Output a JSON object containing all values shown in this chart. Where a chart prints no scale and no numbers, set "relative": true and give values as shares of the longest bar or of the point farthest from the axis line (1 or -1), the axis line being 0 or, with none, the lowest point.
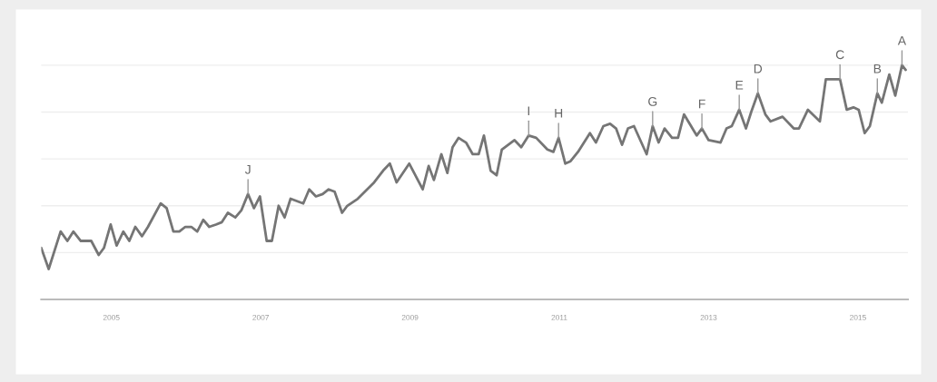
{
  "chart_data": {
    "type": "line",
    "relative": true,
    "grid": "y",
    "marker": "none",
    "line_style": "solid",
    "x": [
      2004.06,
      2004.16,
      2004.32,
      2004.41,
      2004.49,
      2004.59,
      2004.65,
      2004.73,
      2004.83,
      2004.9,
      2004.99,
      2005.07,
      2005.16,
      2005.24,
      2005.32,
      2005.41,
      2005.49,
      2005.66,
      2005.74,
      2005.83,
      2005.91,
      2005.99,
      2006.07,
      2006.15,
      2006.23,
      2006.31,
      2006.4,
      2006.48,
      2006.56,
      2006.66,
      2006.74,
      2006.83,
      2006.91,
      2006.99,
      2007.08,
      2007.15,
      2007.24,
      2007.32,
      2007.4,
      2007.57,
      2007.65,
      2007.74,
      2007.83,
      2007.91,
      2007.99,
      2008.09,
      2008.16,
      2008.3,
      2008.52,
      2008.64,
      2008.73,
      2008.82,
      2008.99,
      2009.17,
      2009.25,
      2009.32,
      2009.42,
      2009.5,
      2009.57,
      2009.65,
      2009.75,
      2009.84,
      2009.92,
      2009.99,
      2010.08,
      2010.16,
      2010.23,
      2010.4,
      2010.49,
      2010.59,
      2010.69,
      2010.84,
      2010.92,
      2010.99,
      2011.08,
      2011.15,
      2011.25,
      2011.41,
      2011.49,
      2011.59,
      2011.68,
      2011.76,
      2011.84,
      2011.92,
      2012.0,
      2012.17,
      2012.25,
      2012.33,
      2012.41,
      2012.51,
      2012.59,
      2012.67,
      2012.84,
      2012.91,
      2013.0,
      2013.16,
      2013.24,
      2013.31,
      2013.41,
      2013.5,
      2013.57,
      2013.66,
      2013.76,
      2013.83,
      2013.99,
      2014.14,
      2014.21,
      2014.33,
      2014.49,
      2014.57,
      2014.76,
      2014.85,
      2014.94,
      2015.01,
      2015.09,
      2015.16,
      2015.26,
      2015.32,
      2015.42,
      2015.5,
      2015.59,
      2015.64
    ],
    "series": [
      {
        "color": "#757575",
        "values": [
          0.22,
          0.13,
          0.29,
          0.25,
          0.29,
          0.25,
          0.25,
          0.25,
          0.19,
          0.22,
          0.32,
          0.23,
          0.29,
          0.25,
          0.31,
          0.27,
          0.31,
          0.41,
          0.39,
          0.29,
          0.29,
          0.31,
          0.31,
          0.29,
          0.34,
          0.31,
          0.32,
          0.33,
          0.37,
          0.35,
          0.38,
          0.45,
          0.39,
          0.44,
          0.25,
          0.25,
          0.4,
          0.35,
          0.43,
          0.41,
          0.47,
          0.44,
          0.45,
          0.47,
          0.46,
          0.37,
          0.4,
          0.43,
          0.5,
          0.55,
          0.58,
          0.5,
          0.58,
          0.47,
          0.57,
          0.51,
          0.62,
          0.54,
          0.65,
          0.69,
          0.67,
          0.62,
          0.62,
          0.7,
          0.55,
          0.53,
          0.64,
          0.68,
          0.65,
          0.7,
          0.69,
          0.64,
          0.63,
          0.69,
          0.58,
          0.59,
          0.63,
          0.71,
          0.67,
          0.74,
          0.75,
          0.73,
          0.66,
          0.73,
          0.74,
          0.62,
          0.74,
          0.67,
          0.73,
          0.69,
          0.69,
          0.79,
          0.7,
          0.73,
          0.68,
          0.67,
          0.73,
          0.74,
          0.81,
          0.73,
          0.8,
          0.88,
          0.79,
          0.76,
          0.78,
          0.73,
          0.73,
          0.81,
          0.76,
          0.94,
          0.94,
          0.81,
          0.82,
          0.81,
          0.71,
          0.74,
          0.88,
          0.84,
          0.96,
          0.87,
          1.0,
          0.98
        ]
      }
    ],
    "xlim": [
      2004.06,
      2015.67
    ],
    "xticks": [
      2005,
      2007,
      2009,
      2011,
      2013,
      2015
    ],
    "annotations": [
      {
        "text": "J",
        "x": 2006.83,
        "y": 0.45
      },
      {
        "text": "I",
        "x": 2010.59,
        "y": 0.7
      },
      {
        "text": "H",
        "x": 2010.99,
        "y": 0.69
      },
      {
        "text": "G",
        "x": 2012.25,
        "y": 0.74
      },
      {
        "text": "F",
        "x": 2012.91,
        "y": 0.73
      },
      {
        "text": "E",
        "x": 2013.41,
        "y": 0.81
      },
      {
        "text": "D",
        "x": 2013.66,
        "y": 0.88
      },
      {
        "text": "C",
        "x": 2014.76,
        "y": 0.94
      },
      {
        "text": "B",
        "x": 2015.26,
        "y": 0.88
      },
      {
        "text": "A",
        "x": 2015.59,
        "y": 1.0
      }
    ]
  }
}
